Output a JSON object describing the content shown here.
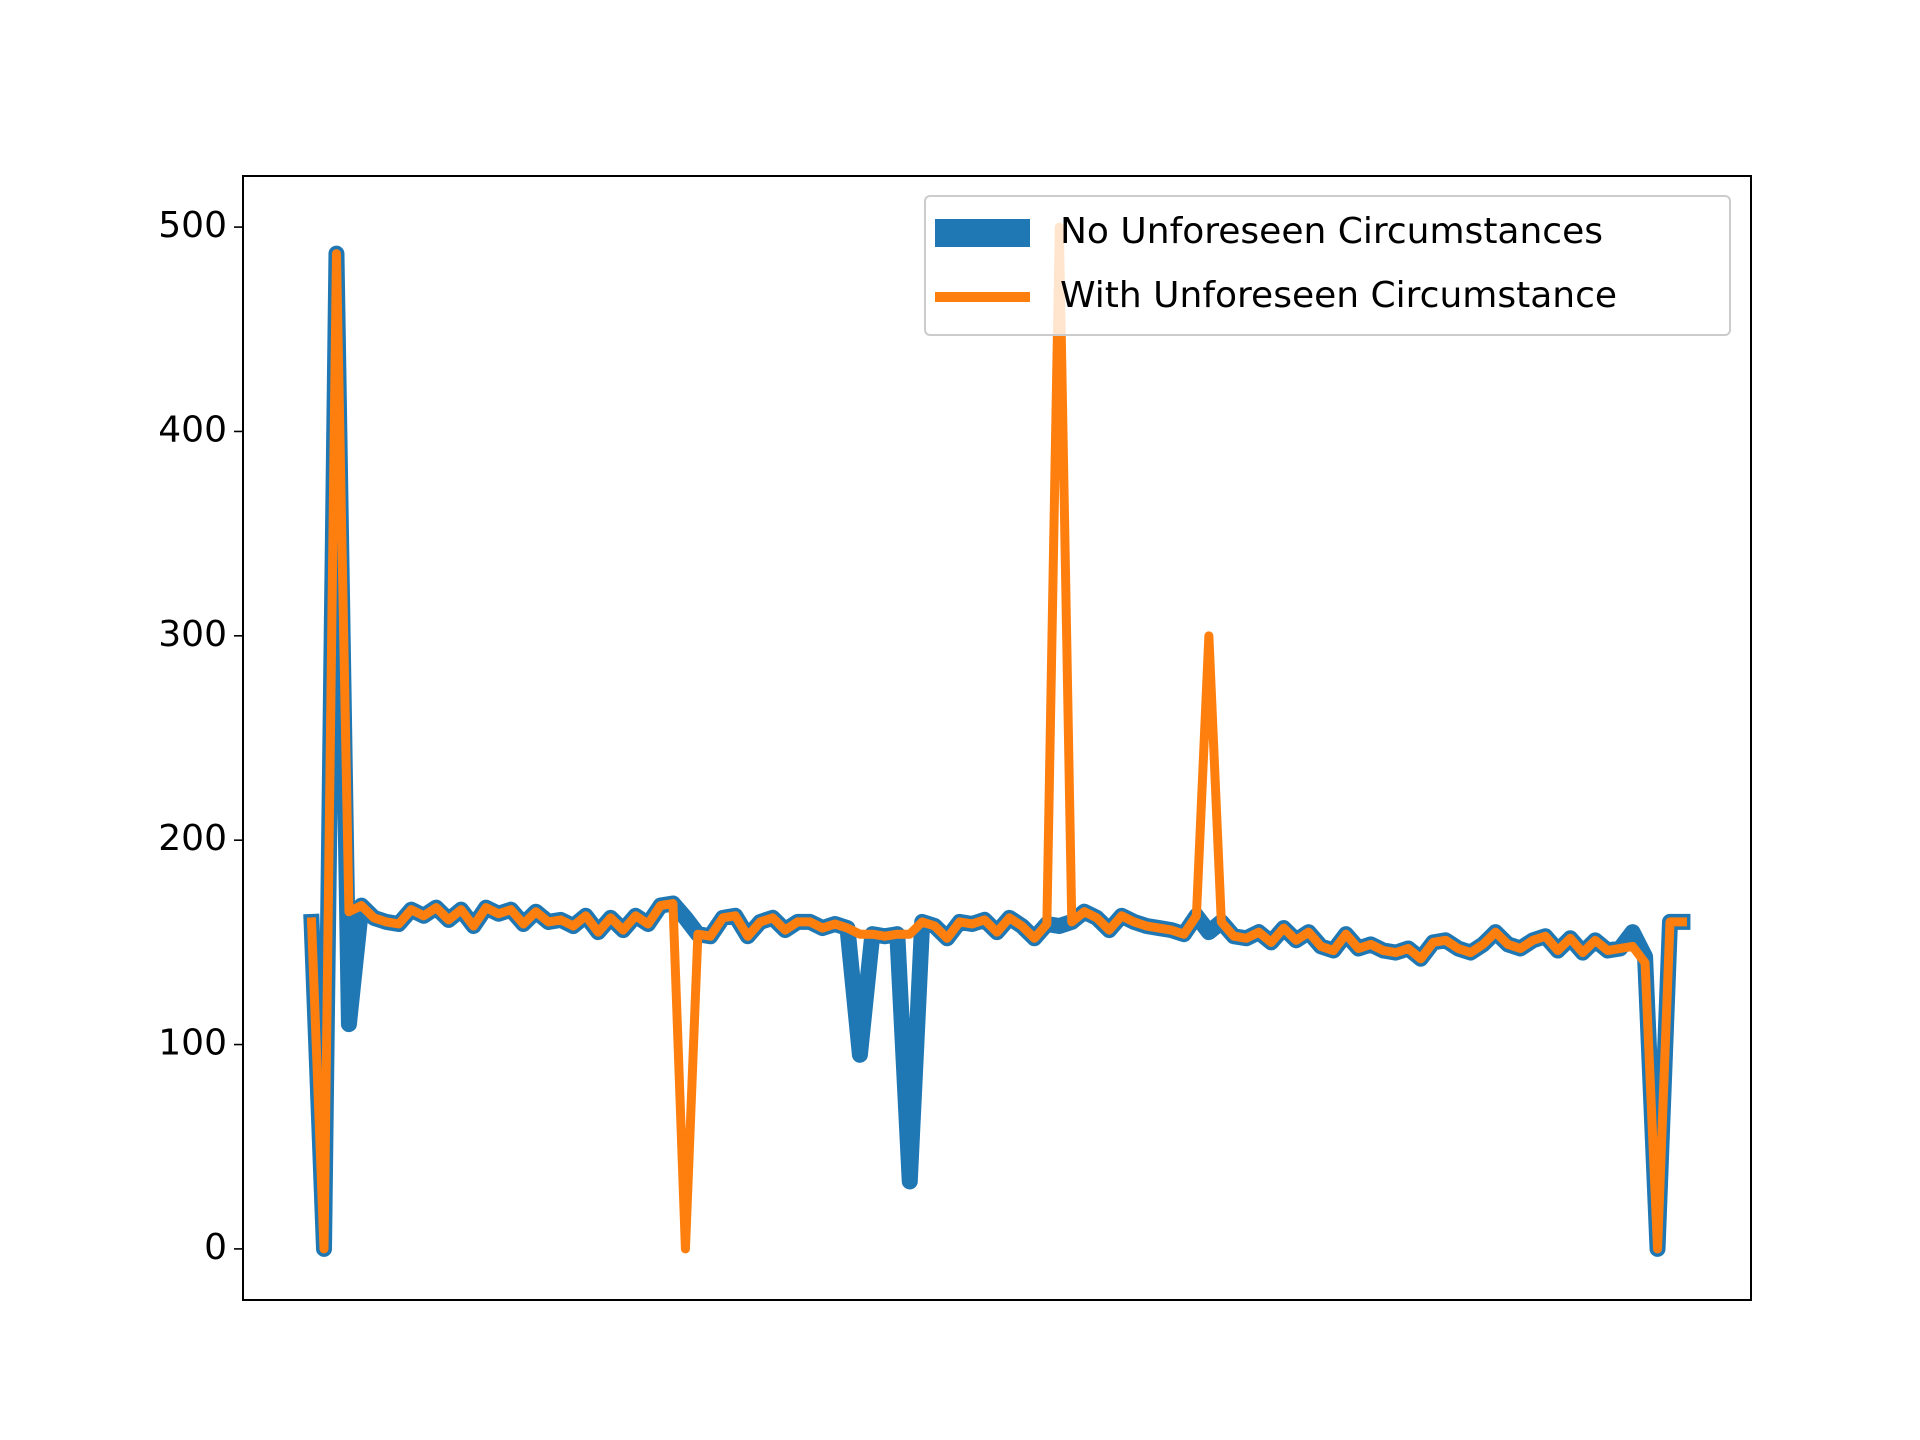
{
  "chart_data": {
    "type": "line",
    "series": [
      {
        "name": "No Unforeseen Circumstances",
        "color": "#1f77b4",
        "width": 16,
        "values": [
          160,
          0,
          487,
          110,
          168,
          162,
          160,
          159,
          166,
          163,
          167,
          161,
          166,
          158,
          167,
          164,
          166,
          159,
          165,
          160,
          161,
          158,
          163,
          155,
          162,
          156,
          163,
          159,
          168,
          169,
          162,
          154,
          153,
          162,
          163,
          153,
          160,
          162,
          156,
          160,
          160,
          157,
          159,
          157,
          95,
          154,
          153,
          154,
          33,
          160,
          158,
          152,
          160,
          159,
          161,
          155,
          162,
          158,
          152,
          159,
          158,
          160,
          165,
          162,
          156,
          163,
          160,
          158,
          157,
          156,
          154,
          163,
          155,
          160,
          153,
          152,
          155,
          150,
          157,
          151,
          155,
          148,
          146,
          154,
          147,
          149,
          146,
          145,
          147,
          142,
          150,
          151,
          147,
          145,
          149,
          155,
          149,
          147,
          151,
          153,
          146,
          152,
          145,
          151,
          146,
          147,
          155,
          143,
          0,
          160,
          160
        ]
      },
      {
        "name": "With Unforeseen Circumstance",
        "color": "#ff7f0e",
        "width": 9,
        "values": [
          160,
          0,
          487,
          165,
          168,
          162,
          160,
          159,
          166,
          163,
          167,
          161,
          166,
          158,
          167,
          164,
          166,
          159,
          165,
          160,
          161,
          158,
          163,
          155,
          162,
          156,
          163,
          159,
          168,
          169,
          0,
          154,
          153,
          162,
          163,
          153,
          160,
          162,
          156,
          160,
          160,
          157,
          159,
          157,
          154,
          154,
          153,
          154,
          154,
          160,
          158,
          152,
          160,
          159,
          161,
          155,
          162,
          158,
          152,
          159,
          500,
          160,
          165,
          162,
          156,
          163,
          160,
          158,
          157,
          156,
          154,
          163,
          300,
          160,
          153,
          152,
          155,
          150,
          157,
          151,
          155,
          148,
          146,
          154,
          147,
          149,
          146,
          145,
          147,
          142,
          150,
          151,
          147,
          145,
          149,
          155,
          149,
          147,
          151,
          153,
          146,
          152,
          145,
          151,
          146,
          147,
          148,
          140,
          0,
          160,
          160
        ]
      }
    ],
    "ylim": [
      -25,
      525
    ],
    "yticks": [
      0,
      100,
      200,
      300,
      400,
      500
    ],
    "grid": false,
    "legend": "upper right"
  }
}
